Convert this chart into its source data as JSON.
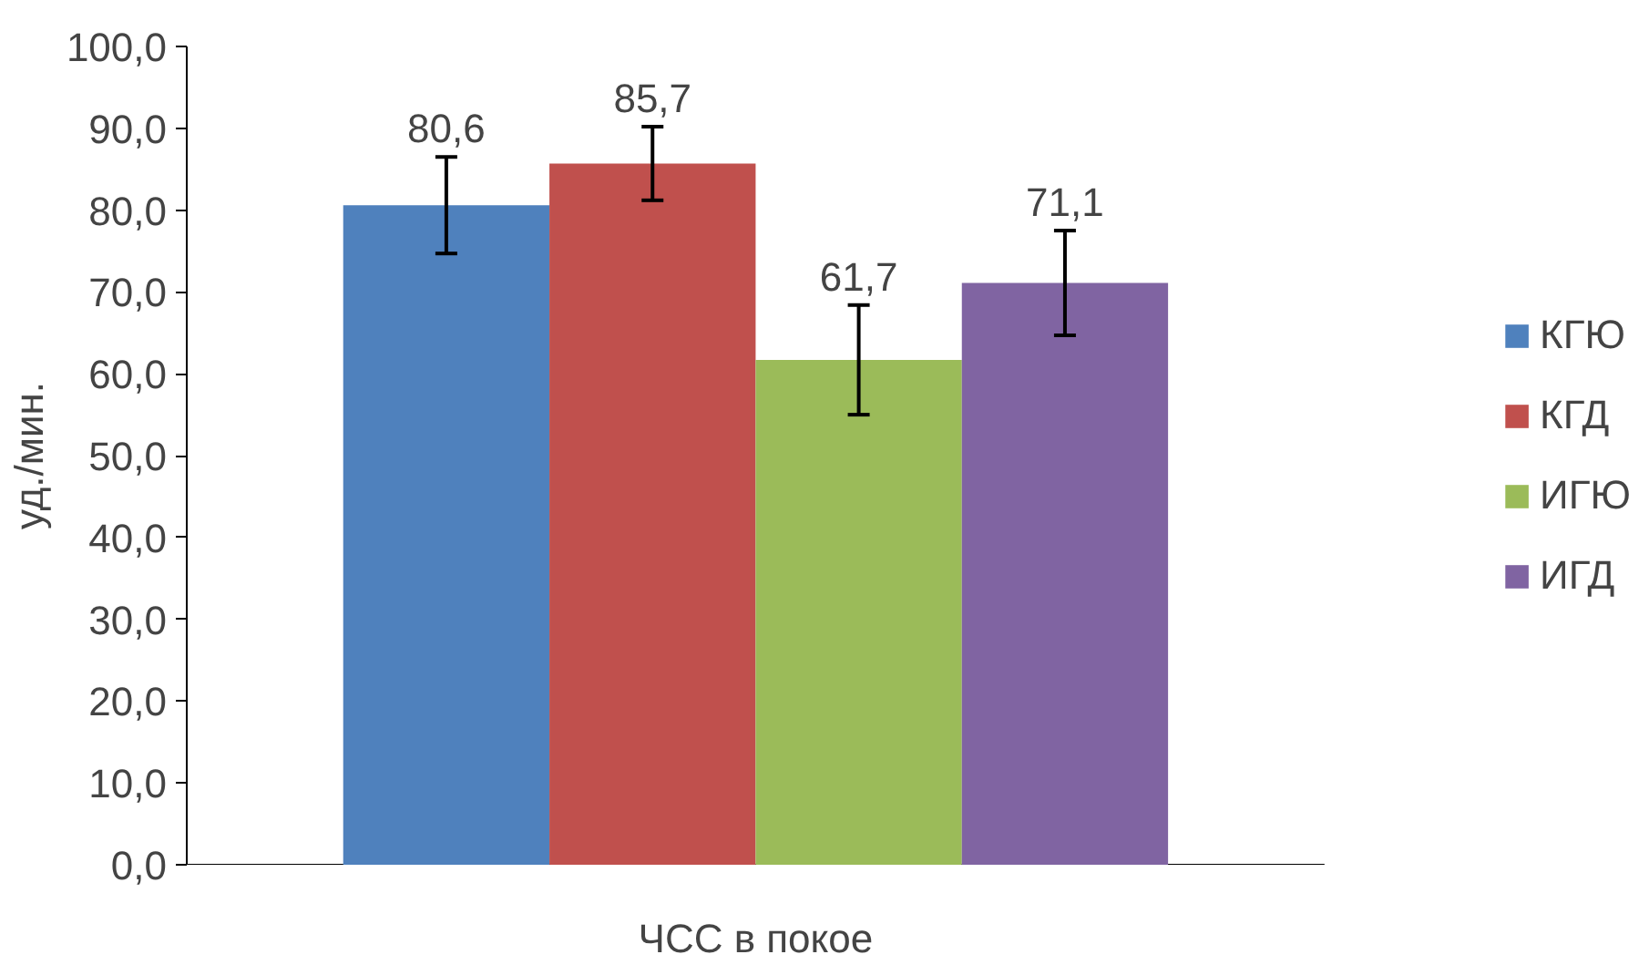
{
  "chart_data": {
    "type": "bar",
    "ylabel": "уд./мин.",
    "categories": [
      "ЧСС в покое"
    ],
    "series": [
      {
        "name": "КГЮ",
        "color": "#4f81bd",
        "values": [
          80.6
        ],
        "errors": [
          5.9
        ],
        "value_labels": [
          "80,6"
        ]
      },
      {
        "name": "КГД",
        "color": "#c0504d",
        "values": [
          85.7
        ],
        "errors": [
          4.5
        ],
        "value_labels": [
          "85,7"
        ]
      },
      {
        "name": "ИГЮ",
        "color": "#9bbb59",
        "values": [
          61.7
        ],
        "errors": [
          6.7
        ],
        "value_labels": [
          "61,7"
        ]
      },
      {
        "name": "ИГД",
        "color": "#8064a2",
        "values": [
          71.1
        ],
        "errors": [
          6.4
        ],
        "value_labels": [
          "71,1"
        ]
      }
    ],
    "ylim": [
      0,
      100
    ],
    "yticks": [
      {
        "value": 0,
        "label": "0,0"
      },
      {
        "value": 10,
        "label": "10,0"
      },
      {
        "value": 20,
        "label": "20,0"
      },
      {
        "value": 30,
        "label": "30,0"
      },
      {
        "value": 40,
        "label": "40,0"
      },
      {
        "value": 50,
        "label": "50,0"
      },
      {
        "value": 60,
        "label": "60,0"
      },
      {
        "value": 70,
        "label": "70,0"
      },
      {
        "value": 80,
        "label": "80,0"
      },
      {
        "value": 90,
        "label": "90,0"
      },
      {
        "value": 100,
        "label": "100,0"
      }
    ],
    "grid": false,
    "legend": "right"
  }
}
